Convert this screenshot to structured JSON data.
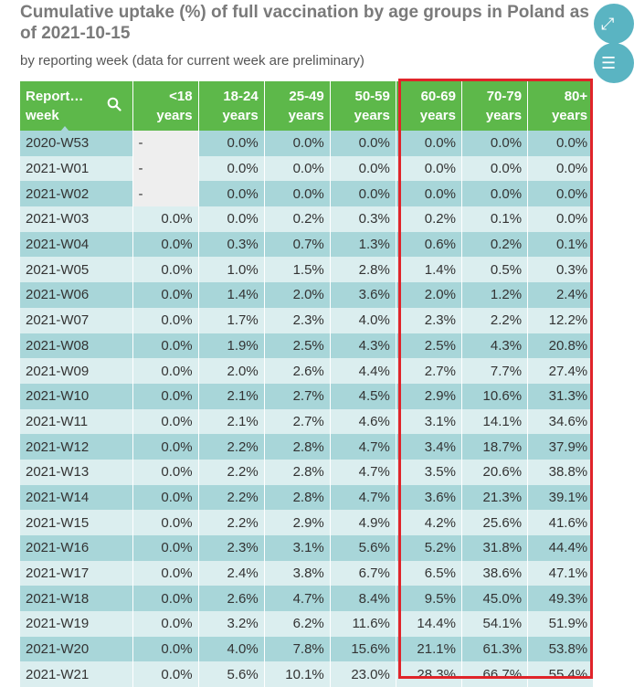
{
  "header": {
    "title": "Cumulative uptake (%) of full vaccination by age groups in Poland as of 2021-10-15",
    "subtitle": "by reporting week (data for current week are preliminary)"
  },
  "columns": [
    {
      "line1": "Report…",
      "line2": "week"
    },
    {
      "line1": "<18",
      "line2": "years"
    },
    {
      "line1": "18-24",
      "line2": "years"
    },
    {
      "line1": "25-49",
      "line2": "years"
    },
    {
      "line1": "50-59",
      "line2": "years"
    },
    {
      "line1": "60-69",
      "line2": "years"
    },
    {
      "line1": "70-79",
      "line2": "years"
    },
    {
      "line1": "80+",
      "line2": "years"
    }
  ],
  "rows": [
    [
      "2020-W53",
      "-",
      "0.0%",
      "0.0%",
      "0.0%",
      "0.0%",
      "0.0%",
      "0.0%"
    ],
    [
      "2021-W01",
      "-",
      "0.0%",
      "0.0%",
      "0.0%",
      "0.0%",
      "0.0%",
      "0.0%"
    ],
    [
      "2021-W02",
      "-",
      "0.0%",
      "0.0%",
      "0.0%",
      "0.0%",
      "0.0%",
      "0.0%"
    ],
    [
      "2021-W03",
      "0.0%",
      "0.0%",
      "0.2%",
      "0.3%",
      "0.2%",
      "0.1%",
      "0.0%"
    ],
    [
      "2021-W04",
      "0.0%",
      "0.3%",
      "0.7%",
      "1.3%",
      "0.6%",
      "0.2%",
      "0.1%"
    ],
    [
      "2021-W05",
      "0.0%",
      "1.0%",
      "1.5%",
      "2.8%",
      "1.4%",
      "0.5%",
      "0.3%"
    ],
    [
      "2021-W06",
      "0.0%",
      "1.4%",
      "2.0%",
      "3.6%",
      "2.0%",
      "1.2%",
      "2.4%"
    ],
    [
      "2021-W07",
      "0.0%",
      "1.7%",
      "2.3%",
      "4.0%",
      "2.3%",
      "2.2%",
      "12.2%"
    ],
    [
      "2021-W08",
      "0.0%",
      "1.9%",
      "2.5%",
      "4.3%",
      "2.5%",
      "4.3%",
      "20.8%"
    ],
    [
      "2021-W09",
      "0.0%",
      "2.0%",
      "2.6%",
      "4.4%",
      "2.7%",
      "7.7%",
      "27.4%"
    ],
    [
      "2021-W10",
      "0.0%",
      "2.1%",
      "2.7%",
      "4.5%",
      "2.9%",
      "10.6%",
      "31.3%"
    ],
    [
      "2021-W11",
      "0.0%",
      "2.1%",
      "2.7%",
      "4.6%",
      "3.1%",
      "14.1%",
      "34.6%"
    ],
    [
      "2021-W12",
      "0.0%",
      "2.2%",
      "2.8%",
      "4.7%",
      "3.4%",
      "18.7%",
      "37.9%"
    ],
    [
      "2021-W13",
      "0.0%",
      "2.2%",
      "2.8%",
      "4.7%",
      "3.5%",
      "20.6%",
      "38.8%"
    ],
    [
      "2021-W14",
      "0.0%",
      "2.2%",
      "2.8%",
      "4.7%",
      "3.6%",
      "21.3%",
      "39.1%"
    ],
    [
      "2021-W15",
      "0.0%",
      "2.2%",
      "2.9%",
      "4.9%",
      "4.2%",
      "25.6%",
      "41.6%"
    ],
    [
      "2021-W16",
      "0.0%",
      "2.3%",
      "3.1%",
      "5.6%",
      "5.2%",
      "31.8%",
      "44.4%"
    ],
    [
      "2021-W17",
      "0.0%",
      "2.4%",
      "3.8%",
      "6.7%",
      "6.5%",
      "38.6%",
      "47.1%"
    ],
    [
      "2021-W18",
      "0.0%",
      "2.6%",
      "4.7%",
      "8.4%",
      "9.5%",
      "45.0%",
      "49.3%"
    ],
    [
      "2021-W19",
      "0.0%",
      "3.2%",
      "6.2%",
      "11.6%",
      "14.4%",
      "54.1%",
      "51.9%"
    ],
    [
      "2021-W20",
      "0.0%",
      "4.0%",
      "7.8%",
      "15.6%",
      "21.1%",
      "61.3%",
      "53.8%"
    ],
    [
      "2021-W21",
      "0.0%",
      "5.6%",
      "10.1%",
      "23.0%",
      "28.3%",
      "66.7%",
      "55.4%"
    ]
  ],
  "colors": {
    "header_green": "#5db84a",
    "row_dark": "#a8d6d9",
    "row_light": "#dbeeef",
    "highlight_red": "#e0242a",
    "side_button": "#5ab4c2"
  },
  "icons": {
    "search": "search-icon",
    "expand": "expand-icon",
    "menu": "menu-icon"
  }
}
